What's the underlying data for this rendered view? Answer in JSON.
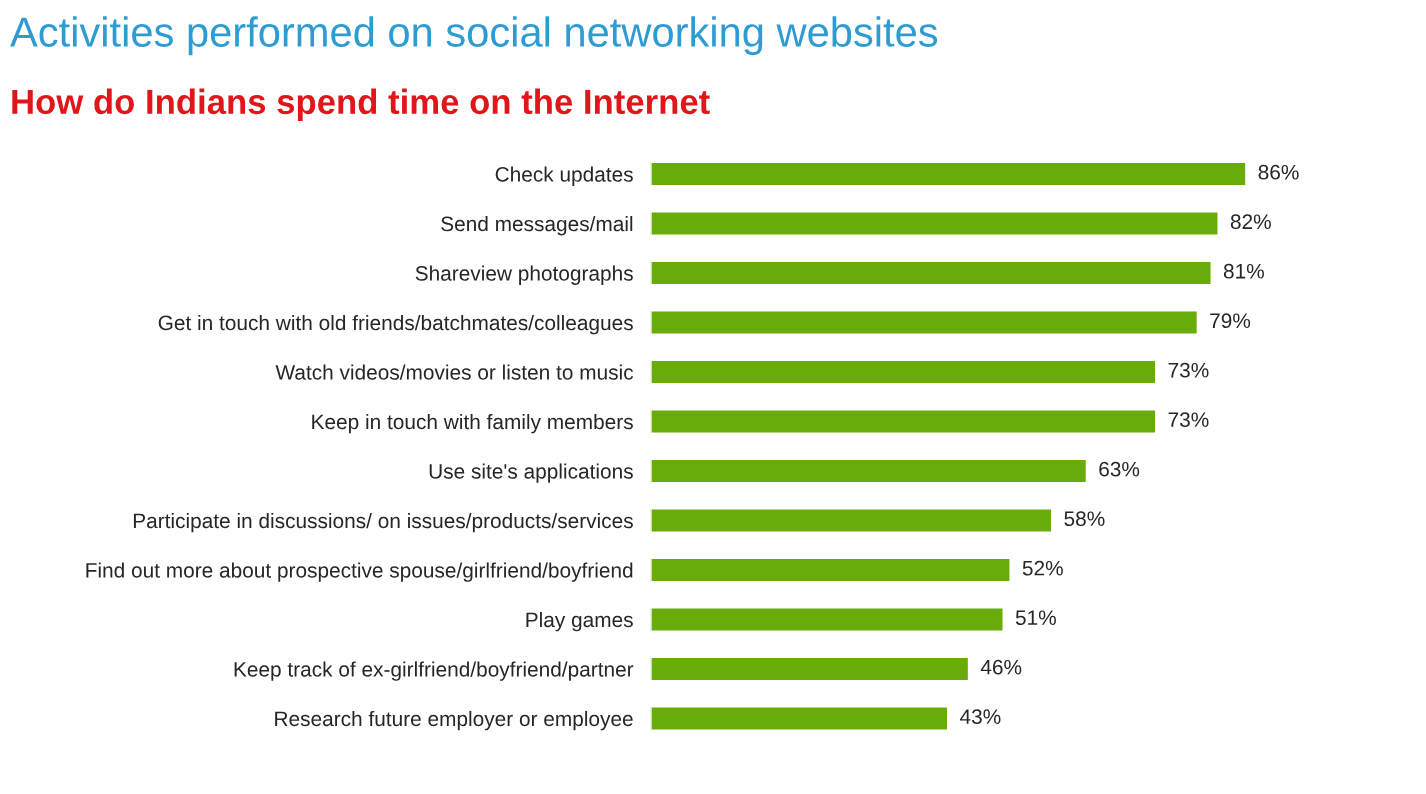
{
  "chart_data": {
    "type": "bar",
    "orientation": "horizontal",
    "title": "Activities performed on social networking websites",
    "subtitle": "How do Indians spend time on the Internet",
    "categories": [
      "Check updates",
      "Send messages/mail",
      "Shareview photographs",
      "Get in touch with old friends/batchmates/colleagues",
      "Watch videos/movies or listen to music",
      "Keep in touch with family members",
      "Use site's applications",
      "Participate in discussions/ on issues/products/services",
      "Find out more about prospective spouse/girlfriend/boyfriend",
      "Play games",
      "Keep track of ex-girlfriend/boyfriend/partner",
      "Research future employer or employee"
    ],
    "values": [
      86,
      82,
      81,
      79,
      73,
      73,
      63,
      58,
      52,
      51,
      46,
      43
    ],
    "value_labels": [
      "86%",
      "82%",
      "81%",
      "79%",
      "73%",
      "73%",
      "63%",
      "58%",
      "52%",
      "51%",
      "46%",
      "43%"
    ],
    "color": "#6aab0c",
    "grid": false,
    "legend": false
  }
}
